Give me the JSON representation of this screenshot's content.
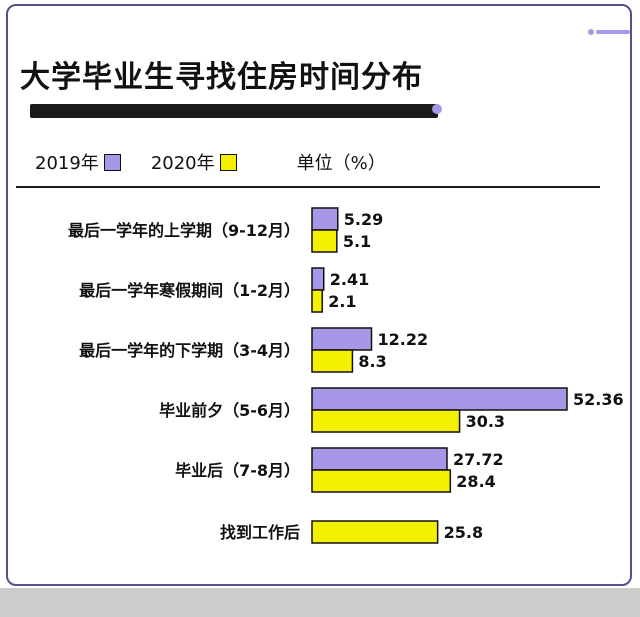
{
  "chart_data": {
    "type": "bar",
    "orientation": "horizontal",
    "title": "大学毕业生寻找住房时间分布",
    "unit": "单位（%）",
    "categories": [
      "最后一学年的上学期（9-12月）",
      "最后一学年寒假期间（1-2月）",
      "最后一学年的下学期（3-4月）",
      "毕业前夕（5-6月）",
      "毕业后（7-8月）",
      "找到工作后"
    ],
    "series": [
      {
        "name": "2019年",
        "color": "#a896e6",
        "values": [
          5.29,
          2.41,
          12.22,
          52.36,
          27.72,
          null
        ]
      },
      {
        "name": "2020年",
        "color": "#f5f000",
        "values": [
          5.1,
          2.1,
          8.3,
          30.3,
          28.4,
          25.8
        ]
      }
    ],
    "xlim": [
      0,
      52.36
    ],
    "grid": false,
    "legend_position": "top-left"
  }
}
